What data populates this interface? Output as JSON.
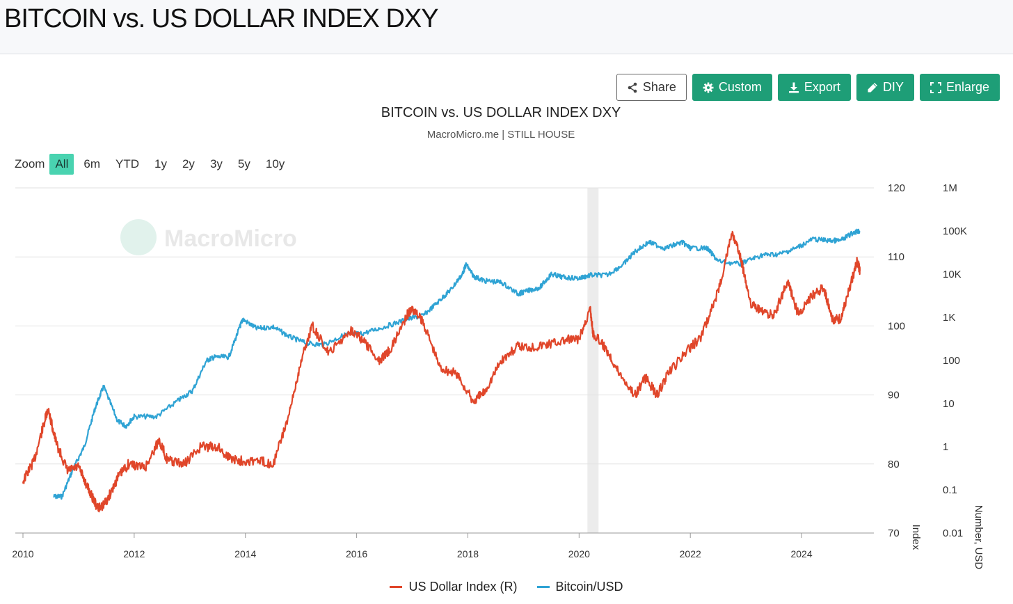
{
  "header": {
    "title": "BITCOIN vs. US DOLLAR INDEX DXY"
  },
  "toolbar": {
    "buttons": [
      {
        "label": "Share",
        "icon": "share-icon"
      },
      {
        "label": "Custom",
        "icon": "gear-icon"
      },
      {
        "label": "Export",
        "icon": "download-icon"
      },
      {
        "label": "DIY",
        "icon": "pencil-icon"
      },
      {
        "label": "Enlarge",
        "icon": "expand-icon"
      }
    ]
  },
  "zoom": {
    "label": "Zoom",
    "options": [
      "All",
      "6m",
      "YTD",
      "1y",
      "2y",
      "3y",
      "5y",
      "10y"
    ],
    "active": "All"
  },
  "colors": {
    "dxy": "#e0462a",
    "btc": "#2fa3d4",
    "accent": "#1e9e77",
    "zoom_active": "#49d3b0",
    "recession_band": "#ececec"
  },
  "chart_data": {
    "type": "line",
    "title": "BITCOIN vs. US DOLLAR INDEX DXY",
    "subtitle": "MacroMicro.me | STILL HOUSE",
    "watermark": "MacroMicro",
    "x_range": [
      2010.0,
      2025.1
    ],
    "x_ticks": [
      "2010",
      "2012",
      "2014",
      "2016",
      "2018",
      "2020",
      "2022",
      "2024"
    ],
    "y_right_1": {
      "label": "Index",
      "range": [
        70,
        120
      ],
      "ticks": [
        "120",
        "110",
        "100",
        "90",
        "80",
        "70"
      ]
    },
    "y_right_2": {
      "label": "Number, USD",
      "scale": "log",
      "range": [
        0.01,
        1000000
      ],
      "ticks": [
        "1M",
        "100K",
        "10K",
        "1K",
        "100",
        "10",
        "1",
        "0.1",
        "0.01"
      ]
    },
    "shaded_band": [
      2020.15,
      2020.35
    ],
    "legend_position": "bottom-center",
    "grid": true,
    "series": [
      {
        "name": "US Dollar Index (R)",
        "axis": "Index",
        "x": [
          2010.0,
          2010.2,
          2010.4,
          2010.45,
          2010.6,
          2010.8,
          2011.0,
          2011.2,
          2011.35,
          2011.5,
          2011.7,
          2011.9,
          2012.2,
          2012.45,
          2012.6,
          2012.9,
          2013.2,
          2013.5,
          2013.7,
          2013.9,
          2014.2,
          2014.5,
          2014.8,
          2015.0,
          2015.2,
          2015.5,
          2015.9,
          2016.1,
          2016.4,
          2016.6,
          2016.9,
          2017.0,
          2017.2,
          2017.5,
          2017.8,
          2018.1,
          2018.3,
          2018.6,
          2018.9,
          2019.2,
          2019.5,
          2019.8,
          2020.0,
          2020.2,
          2020.25,
          2020.5,
          2020.7,
          2021.0,
          2021.2,
          2021.4,
          2021.6,
          2021.9,
          2022.2,
          2022.5,
          2022.75,
          2022.9,
          2023.1,
          2023.3,
          2023.5,
          2023.75,
          2023.95,
          2024.2,
          2024.4,
          2024.55,
          2024.7,
          2024.9,
          2025.0,
          2025.05
        ],
        "values": [
          77.5,
          80.5,
          86.5,
          88.0,
          83.0,
          79.0,
          79.5,
          76.0,
          73.5,
          74.5,
          78.0,
          80.0,
          79.5,
          83.5,
          80.5,
          80.0,
          82.5,
          82.5,
          81.0,
          80.5,
          80.5,
          80.0,
          87.5,
          95.0,
          100.0,
          96.0,
          99.5,
          98.0,
          95.0,
          96.5,
          101.5,
          102.5,
          100.5,
          94.0,
          93.0,
          89.0,
          90.5,
          95.0,
          97.0,
          97.0,
          97.5,
          98.0,
          98.0,
          102.5,
          99.0,
          96.5,
          93.5,
          90.0,
          92.5,
          90.0,
          93.0,
          96.0,
          98.5,
          105.0,
          113.5,
          110.0,
          103.0,
          102.0,
          101.5,
          106.5,
          101.5,
          104.5,
          105.5,
          101.0,
          101.0,
          106.5,
          109.5,
          108.0
        ]
      },
      {
        "name": "Bitcoin/USD",
        "axis": "Number, USD",
        "x": [
          2010.55,
          2010.7,
          2010.9,
          2011.1,
          2011.3,
          2011.45,
          2011.7,
          2011.85,
          2012.0,
          2012.4,
          2012.8,
          2013.05,
          2013.3,
          2013.45,
          2013.7,
          2013.9,
          2013.95,
          2014.2,
          2014.5,
          2014.8,
          2015.1,
          2015.4,
          2015.8,
          2016.1,
          2016.5,
          2016.9,
          2017.2,
          2017.5,
          2017.7,
          2017.9,
          2017.97,
          2018.1,
          2018.3,
          2018.6,
          2018.9,
          2019.0,
          2019.3,
          2019.5,
          2019.7,
          2020.0,
          2020.2,
          2020.5,
          2020.8,
          2021.0,
          2021.25,
          2021.55,
          2021.85,
          2022.0,
          2022.3,
          2022.5,
          2022.9,
          2023.0,
          2023.3,
          2023.6,
          2023.9,
          2024.2,
          2024.5,
          2024.7,
          2024.95,
          2025.05
        ],
        "values": [
          0.07,
          0.07,
          0.3,
          1.0,
          8,
          25,
          4,
          3,
          5,
          5,
          12,
          20,
          100,
          120,
          120,
          600,
          900,
          550,
          600,
          350,
          250,
          230,
          400,
          420,
          600,
          900,
          1100,
          2500,
          4500,
          10000,
          17000,
          9000,
          7000,
          6500,
          3500,
          3800,
          5000,
          10000,
          8500,
          8000,
          9500,
          9500,
          17000,
          33000,
          55000,
          40000,
          55000,
          40000,
          40000,
          20000,
          17000,
          20000,
          28000,
          29000,
          40000,
          65000,
          60000,
          60000,
          95000,
          100000
        ]
      }
    ]
  }
}
